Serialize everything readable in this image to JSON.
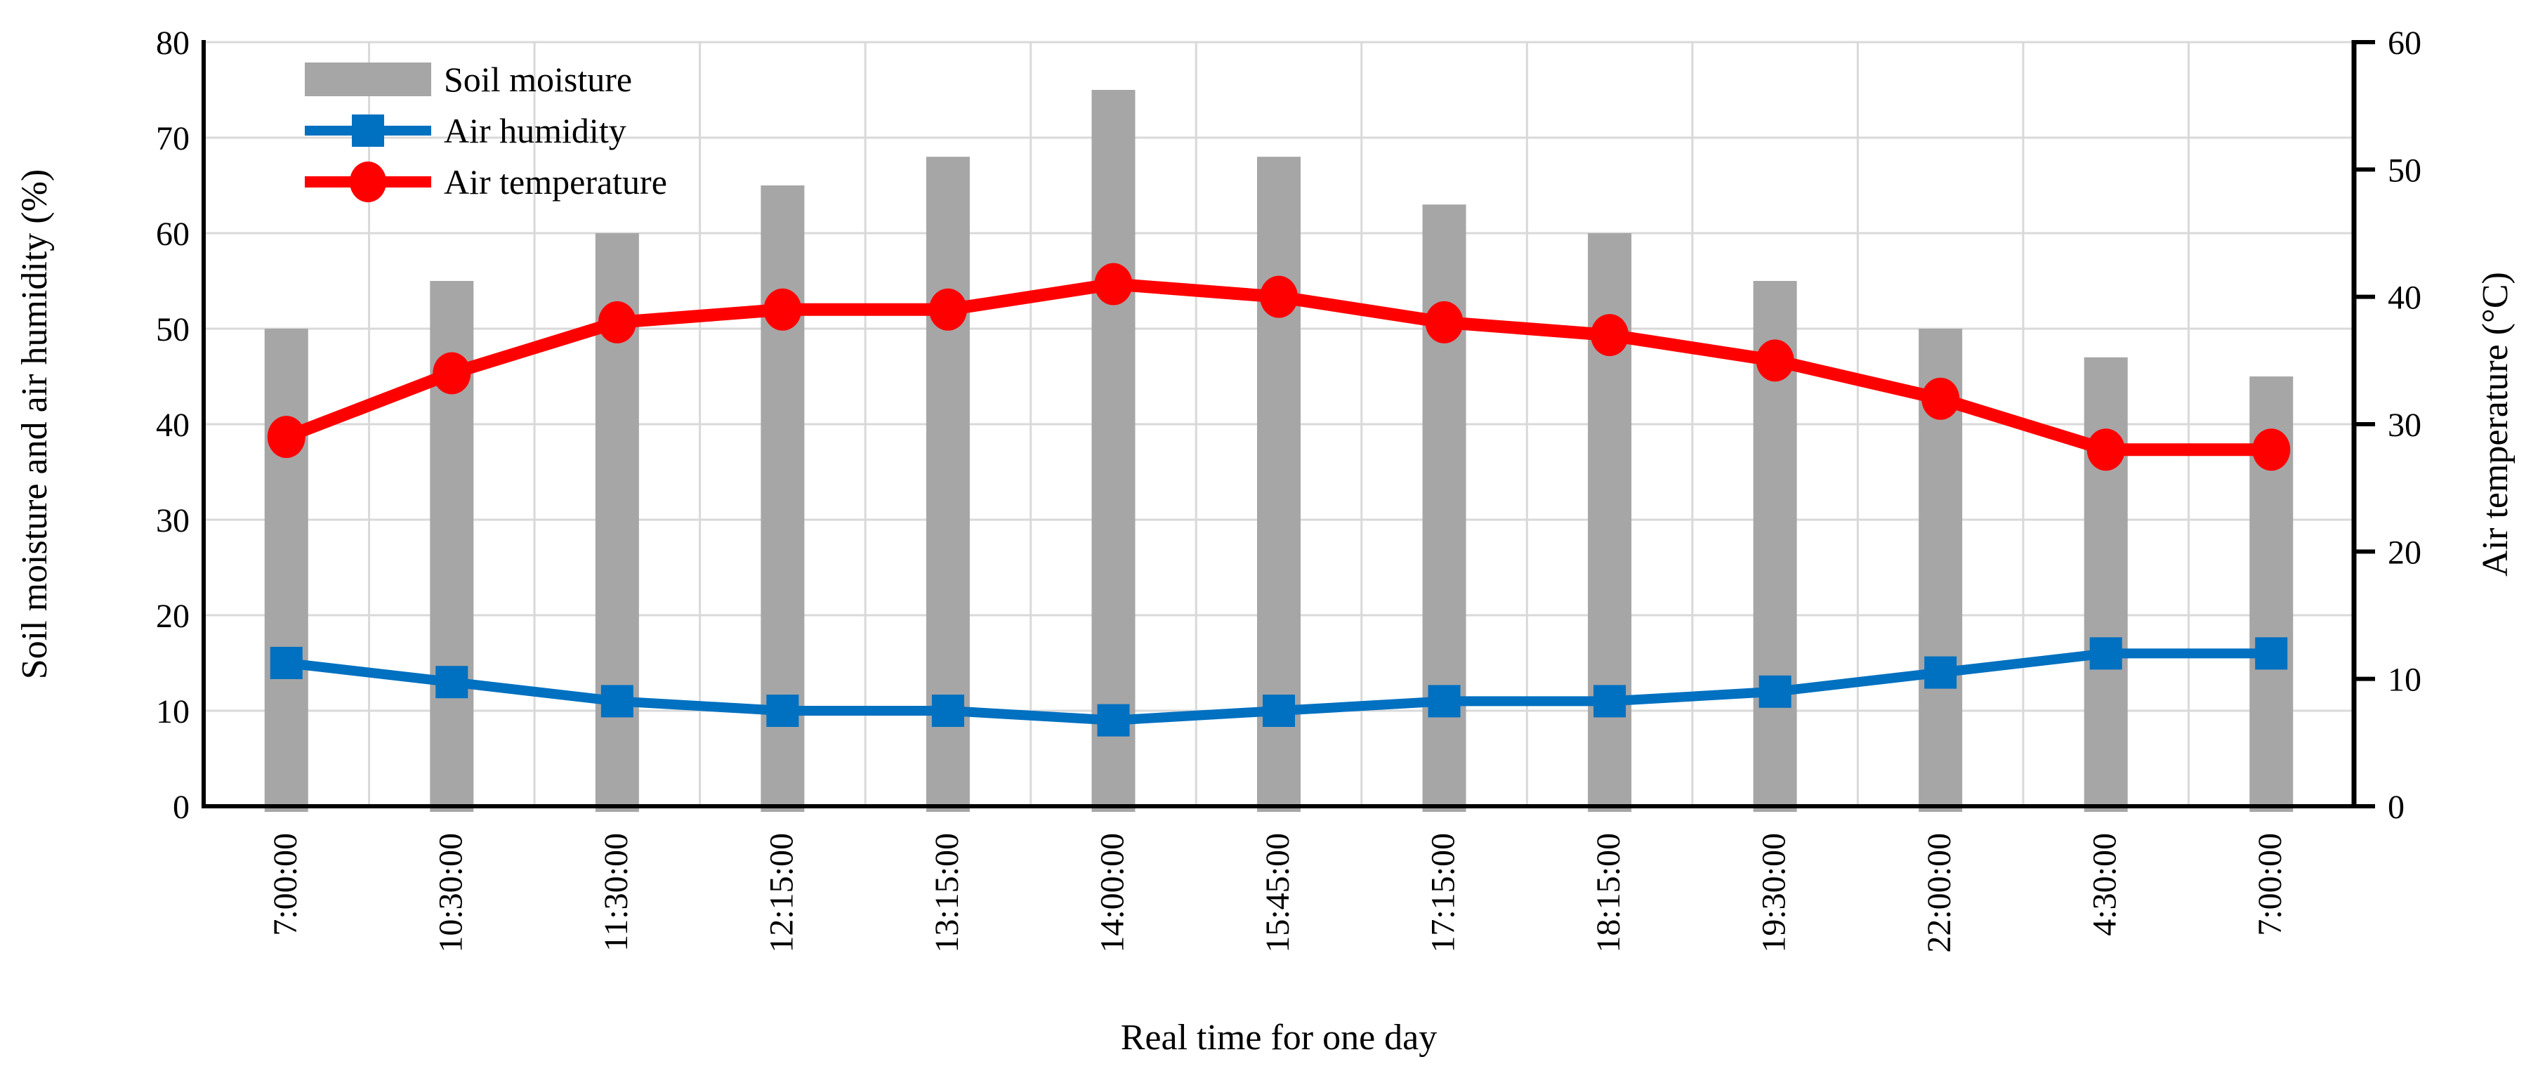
{
  "figure": {
    "x_axis_title": "Real time for one day",
    "left_axis_title": "Soil moisture and air humidity (%)",
    "right_axis_title": "Air temperature (°C)",
    "legend": [
      {
        "label": "Soil moisture"
      },
      {
        "label": "Air humidity"
      },
      {
        "label": "Air temperature"
      }
    ]
  },
  "colors": {
    "soil_moisture": "#A6A6A6",
    "air_humidity": "#0070C0",
    "air_temperature": "#FF0000",
    "gridline": "#D9D9D9",
    "axis": "#000000",
    "background": "#FFFFFF"
  },
  "chart_data": {
    "type": "bar",
    "subtype": "bar+line dual axis",
    "categories": [
      "7:00:00",
      "10:30:00",
      "11:30:00",
      "12:15:00",
      "13:15:00",
      "14:00:00",
      "15:45:00",
      "17:15:00",
      "18:15:00",
      "19:30:00",
      "22:00:00",
      "4:30:00",
      "7:00:00"
    ],
    "series": [
      {
        "name": "Soil moisture",
        "type": "bar",
        "axis": "left",
        "marker": "none",
        "color": "#A6A6A6",
        "values": [
          50,
          55,
          60,
          65,
          68,
          75,
          68,
          63,
          60,
          55,
          50,
          47,
          45
        ]
      },
      {
        "name": "Air humidity",
        "type": "line",
        "axis": "left",
        "marker": "square",
        "color": "#0070C0",
        "values": [
          15,
          13,
          11,
          10,
          10,
          9,
          10,
          11,
          11,
          12,
          14,
          16,
          16
        ]
      },
      {
        "name": "Air temperature",
        "type": "line",
        "axis": "right",
        "marker": "circle",
        "color": "#FF0000",
        "values": [
          29,
          34,
          38,
          39,
          39,
          41,
          40,
          38,
          37,
          35,
          32,
          28,
          28
        ]
      }
    ],
    "xlabel": "Real time for one day",
    "left_axis": {
      "label": "Soil moisture and air humidity (%)",
      "min": 0,
      "max": 80,
      "tick_step": 10,
      "tick_labels": [
        "0",
        "10",
        "20",
        "30",
        "40",
        "50",
        "60",
        "70",
        "80"
      ]
    },
    "right_axis": {
      "label": "Air temperature (°C)",
      "min": 0,
      "max": 60,
      "tick_step": 10,
      "tick_labels": [
        "0",
        "10",
        "20",
        "30",
        "40",
        "50",
        "60"
      ]
    },
    "grid": true,
    "legend_position": "top-left-inside"
  }
}
